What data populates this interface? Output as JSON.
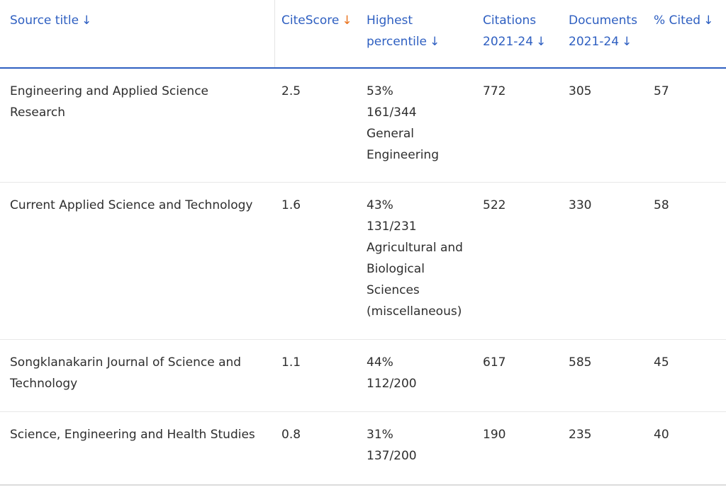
{
  "header": {
    "source_title": "Source title",
    "citescore": "CiteScore",
    "highest_percentile": [
      "Highest",
      "percentile"
    ],
    "citations": [
      "Citations",
      "2021-24"
    ],
    "documents": [
      "Documents",
      "2021-24"
    ],
    "pct_cited": "% Cited",
    "sort_arrow": "↓"
  },
  "colors": {
    "link": "#2e5fc1",
    "active_sort": "#e9711c",
    "text": "#2e2e2e"
  },
  "rows": [
    {
      "title": [
        "Engineering and Applied Science",
        "Research"
      ],
      "citescore": "2.5",
      "percentile": [
        "53%",
        "161/344",
        "General",
        "Engineering"
      ],
      "citations": "772",
      "documents": "305",
      "cited": "57"
    },
    {
      "title": [
        "Current Applied Science and Technology"
      ],
      "citescore": "1.6",
      "percentile": [
        "43%",
        "131/231",
        "Agricultural and",
        "Biological",
        "Sciences",
        "(miscellaneous)"
      ],
      "citations": "522",
      "documents": "330",
      "cited": "58"
    },
    {
      "title": [
        "Songklanakarin Journal of Science and",
        "Technology"
      ],
      "citescore": "1.1",
      "percentile": [
        "44%",
        "112/200"
      ],
      "citations": "617",
      "documents": "585",
      "cited": "45"
    },
    {
      "title": [
        "Science, Engineering and Health Studies"
      ],
      "citescore": "0.8",
      "percentile": [
        "31%",
        "137/200"
      ],
      "citations": "190",
      "documents": "235",
      "cited": "40"
    }
  ]
}
